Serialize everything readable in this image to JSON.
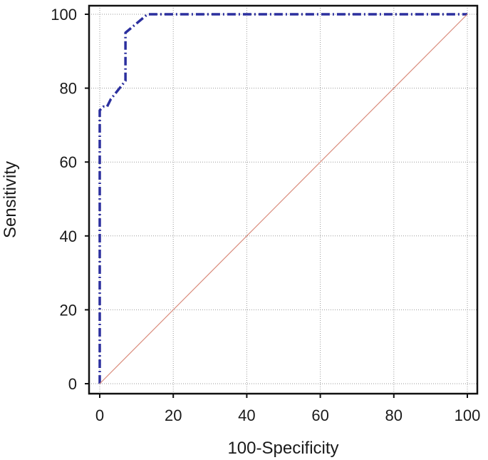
{
  "chart_data": {
    "type": "line",
    "title": "",
    "xlabel": "100-Specificity",
    "ylabel": "Sensitivity",
    "xlim": [
      0,
      100
    ],
    "ylim": [
      0,
      100
    ],
    "xticks": [
      0,
      20,
      40,
      60,
      80,
      100
    ],
    "yticks": [
      0,
      20,
      40,
      60,
      80,
      100
    ],
    "grid": true,
    "series": [
      {
        "style": "dash-dot",
        "color": "#2b2f9e",
        "x": [
          0,
          0,
          1,
          2,
          3,
          7,
          7,
          13,
          100
        ],
        "y": [
          0,
          74,
          75,
          75,
          77,
          82,
          95,
          100,
          100
        ]
      },
      {
        "style": "solid",
        "color": "#d98a7a",
        "x": [
          0,
          100
        ],
        "y": [
          0,
          100
        ]
      }
    ]
  }
}
